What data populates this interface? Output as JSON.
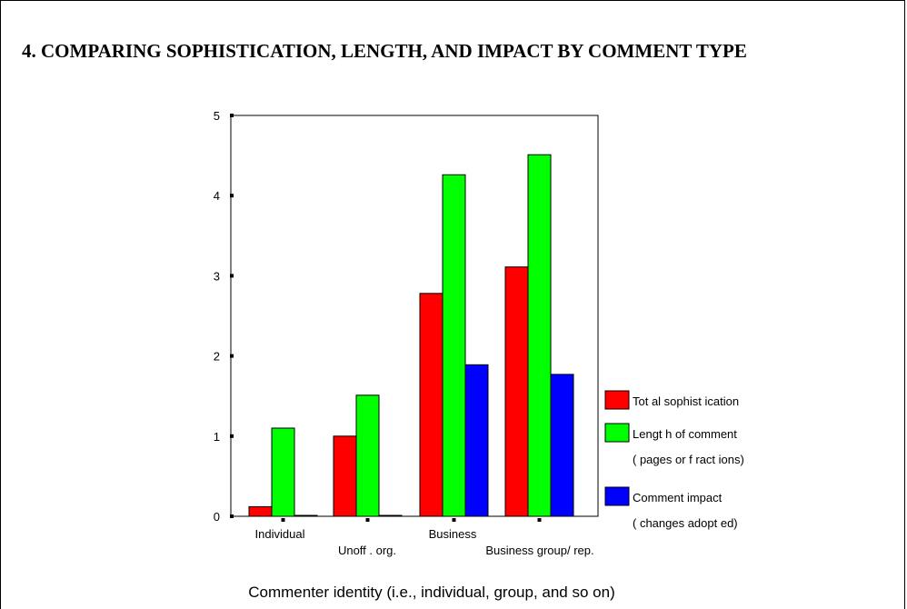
{
  "page": {
    "title": "4.  COMPARING SOPHISTICATION, LENGTH, AND IMPACT BY COMMENT TYPE"
  },
  "chart_data": {
    "type": "bar",
    "title": "4.  COMPARING SOPHISTICATION, LENGTH, AND IMPACT BY COMMENT TYPE",
    "xlabel": "Commenter identity (i.e., individual, group, and so on)",
    "ylabel": "",
    "ylim": [
      0,
      5
    ],
    "yticks": [
      "0",
      "1",
      "2",
      "3",
      "4",
      "5"
    ],
    "categories": [
      "Individual",
      "Unoff . org.",
      "Business",
      "Business group/ rep."
    ],
    "series": [
      {
        "name": "Tot al sophist ication",
        "color": "#ff0000",
        "values": [
          0.12,
          1.0,
          2.78,
          3.11
        ]
      },
      {
        "name": "Lengt h of comment",
        "name_line2": "( pages or f ract ions)",
        "color": "#00ff00",
        "values": [
          1.1,
          1.51,
          4.26,
          4.51
        ]
      },
      {
        "name": "Comment impact",
        "name_line2": "( changes adopt ed)",
        "color": "#0000ff",
        "values": [
          0.0,
          0.0,
          1.89,
          1.77
        ]
      }
    ],
    "grid": false,
    "legend_position": "right"
  }
}
